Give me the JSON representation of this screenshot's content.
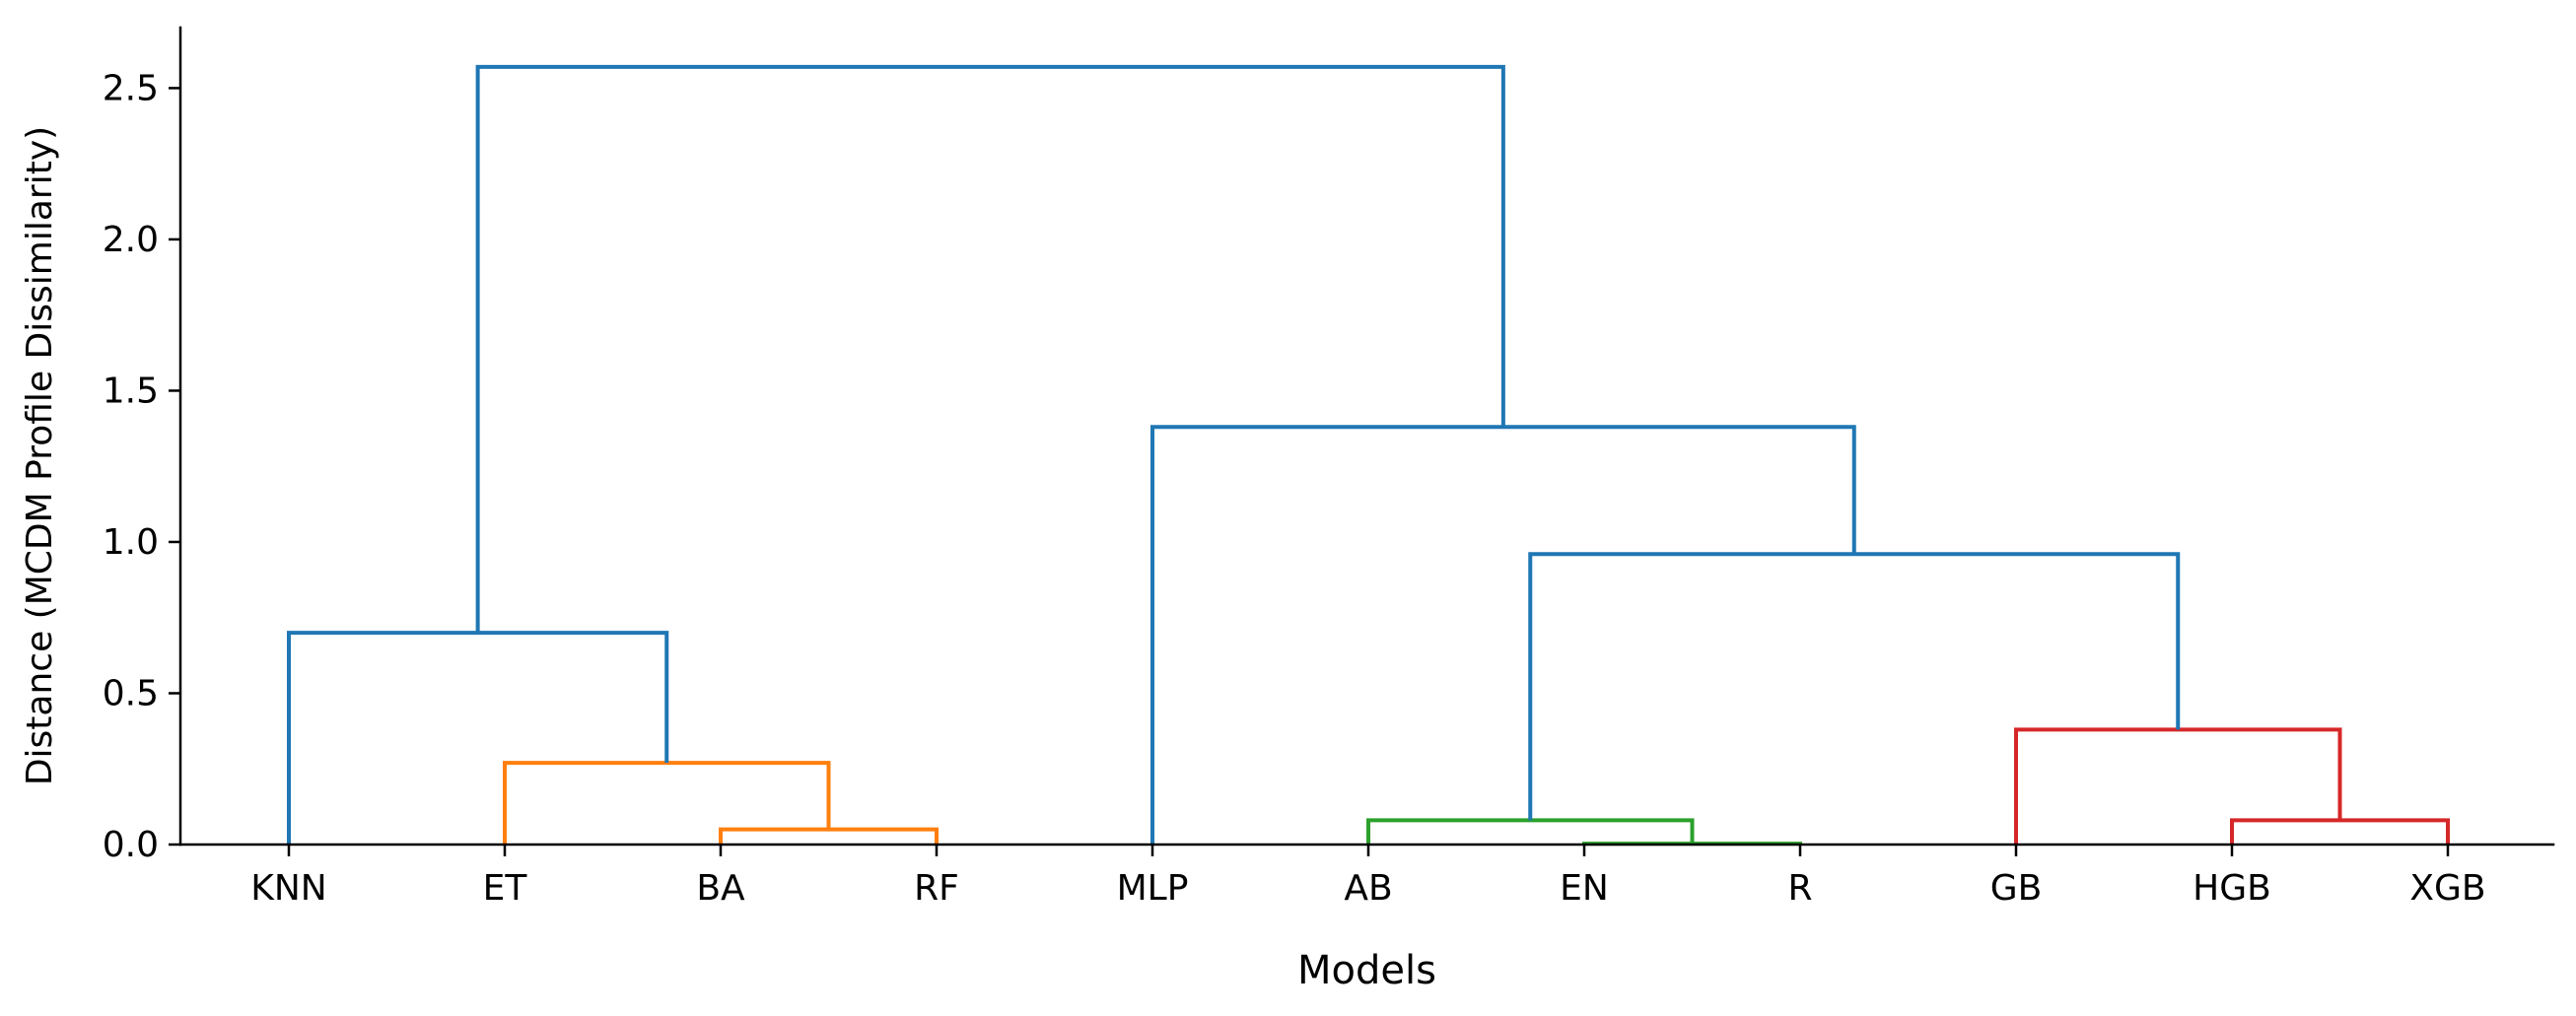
{
  "chart_data": {
    "type": "dendrogram",
    "title": "",
    "xlabel": "Models",
    "ylabel": "Distance (MCDM Profile Dissimilarity)",
    "ylim": [
      0,
      2.7
    ],
    "yticks": [
      "0.0",
      "0.5",
      "1.0",
      "1.5",
      "2.0",
      "2.5"
    ],
    "ytick_values": [
      0,
      0.5,
      1.0,
      1.5,
      2.0,
      2.5
    ],
    "leaves": [
      "KNN",
      "ET",
      "BA",
      "RF",
      "MLP",
      "AB",
      "EN",
      "R",
      "GB",
      "HGB",
      "XGB"
    ],
    "grid": false,
    "legend": "none",
    "colors": {
      "C0": "#1f77b4",
      "C1": "#ff7f0e",
      "C2": "#2ca02c",
      "C3": "#d62728",
      "axis": "#000000"
    },
    "merges": [
      {
        "left": "BA",
        "right": "RF",
        "height": 0.05,
        "color": "C1"
      },
      {
        "left": "ET",
        "right": "BA+RF",
        "height": 0.27,
        "color": "C1"
      },
      {
        "left": "KNN",
        "right": "ET+BA+RF",
        "height": 0.7,
        "color": "C0"
      },
      {
        "left": "EN",
        "right": "R",
        "height": 0.003,
        "color": "C2"
      },
      {
        "left": "AB",
        "right": "EN+R",
        "height": 0.08,
        "color": "C2"
      },
      {
        "left": "HGB",
        "right": "XGB",
        "height": 0.08,
        "color": "C3"
      },
      {
        "left": "GB",
        "right": "HGB+XGB",
        "height": 0.38,
        "color": "C3"
      },
      {
        "left": "AB+EN+R",
        "right": "GB+HGB+XGB",
        "height": 0.96,
        "color": "C0"
      },
      {
        "left": "MLP",
        "right": "AB+EN+R+GB+HGB+XGB",
        "height": 1.38,
        "color": "C0"
      },
      {
        "left": "KNN+ET+BA+RF",
        "right": "MLP+AB+EN+R+GB+HGB+XGB",
        "height": 2.57,
        "color": "C0"
      }
    ]
  }
}
